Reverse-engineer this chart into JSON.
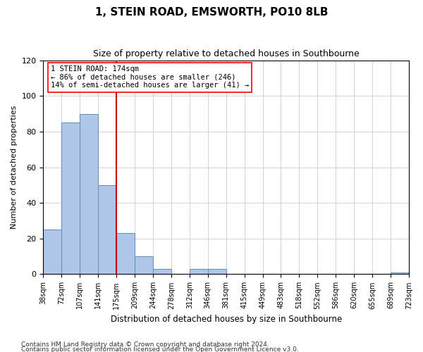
{
  "title": "1, STEIN ROAD, EMSWORTH, PO10 8LB",
  "subtitle": "Size of property relative to detached houses in Southbourne",
  "xlabel": "Distribution of detached houses by size in Southbourne",
  "ylabel": "Number of detached properties",
  "footnote1": "Contains HM Land Registry data © Crown copyright and database right 2024.",
  "footnote2": "Contains public sector information licensed under the Open Government Licence v3.0.",
  "annotation_line1": "1 STEIN ROAD: 174sqm",
  "annotation_line2": "← 86% of detached houses are smaller (246)",
  "annotation_line3": "14% of semi-detached houses are larger (41) →",
  "bar_color": "#aec6e8",
  "bar_edge_color": "#5a8fc0",
  "ref_line_color": "#cc0000",
  "ref_line_x": 4,
  "ylim": [
    0,
    120
  ],
  "yticks": [
    0,
    20,
    40,
    60,
    80,
    100,
    120
  ],
  "bin_edge_labels": [
    "38sqm",
    "72sqm",
    "107sqm",
    "141sqm",
    "175sqm",
    "209sqm",
    "244sqm",
    "278sqm",
    "312sqm",
    "346sqm",
    "381sqm",
    "415sqm",
    "449sqm",
    "483sqm",
    "518sqm",
    "552sqm",
    "586sqm",
    "620sqm",
    "655sqm",
    "689sqm",
    "723sqm"
  ],
  "bar_heights": [
    25,
    85,
    90,
    50,
    23,
    10,
    3,
    0,
    3,
    3,
    0,
    0,
    0,
    0,
    0,
    0,
    0,
    0,
    0,
    1
  ],
  "n_bins": 20,
  "background_color": "#ffffff",
  "grid_color": "#cccccc"
}
